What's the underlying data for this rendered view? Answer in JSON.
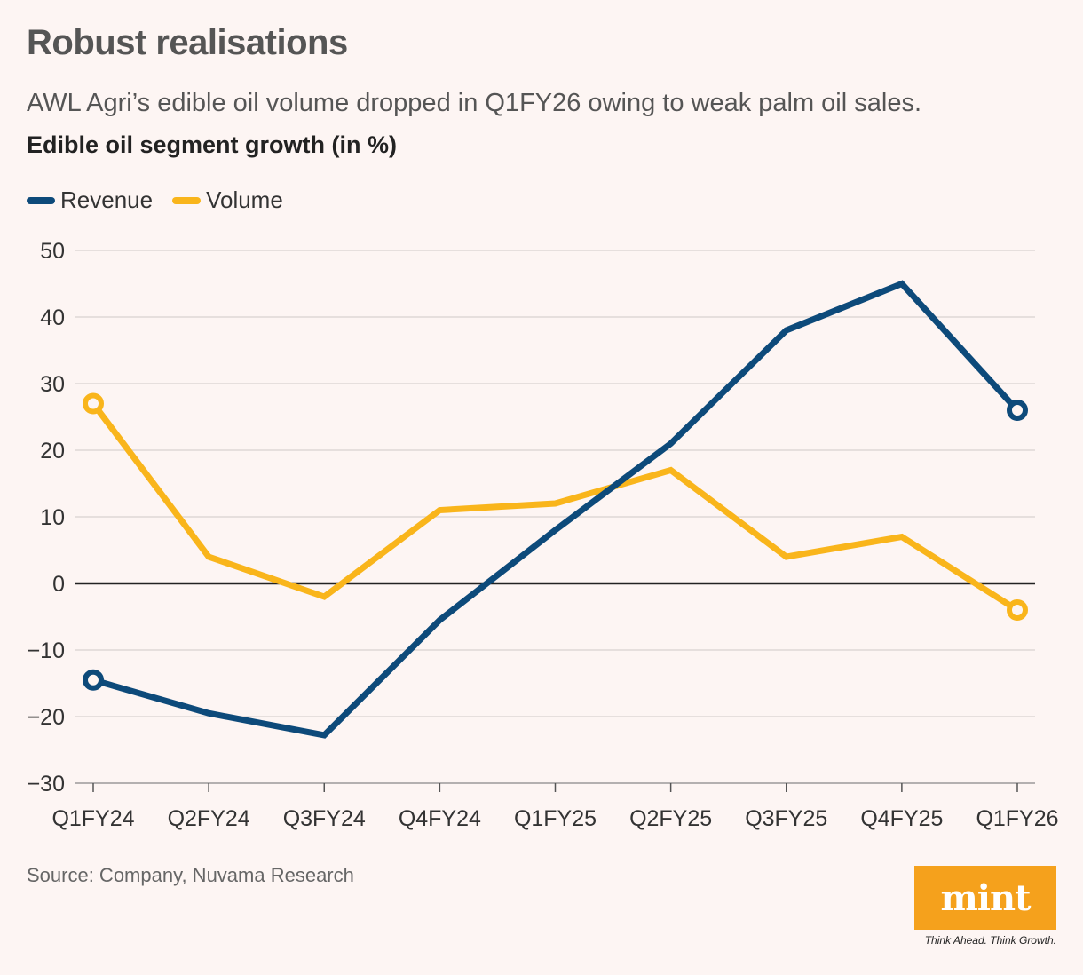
{
  "header": {
    "title": "Robust realisations",
    "subtitle": "AWL Agri’s edible oil volume dropped in Q1FY26 owing to weak palm oil sales.",
    "chart_label": "Edible oil segment growth (in %)"
  },
  "legend": {
    "revenue_label": "Revenue",
    "volume_label": "Volume"
  },
  "footer": {
    "source": "Source: Company, Nuvama Research",
    "logo_text": "mint",
    "tagline": "Think Ahead. Think Growth."
  },
  "colors": {
    "revenue": "#0d4a7a",
    "volume": "#f9b51b",
    "logo": "#f5a11c",
    "grid": "#d9d2d0",
    "zero_line": "#222222"
  },
  "chart_data": {
    "type": "line",
    "title": "Edible oil segment growth (in %)",
    "xlabel": "",
    "ylabel": "",
    "categories": [
      "Q1FY24",
      "Q2FY24",
      "Q3FY24",
      "Q4FY24",
      "Q1FY25",
      "Q2FY25",
      "Q3FY25",
      "Q4FY25",
      "Q1FY26"
    ],
    "ylim": [
      -30,
      50
    ],
    "yticks": [
      50,
      40,
      30,
      20,
      10,
      0,
      -10,
      -20,
      -30
    ],
    "ytick_labels": [
      "50",
      "40",
      "30",
      "20",
      "10",
      "0",
      "−10",
      "−20",
      "−30"
    ],
    "series": [
      {
        "name": "Revenue",
        "color": "#0d4a7a",
        "values": [
          -14.5,
          -19.5,
          -22.8,
          -5.5,
          8,
          21,
          38,
          45,
          26
        ]
      },
      {
        "name": "Volume",
        "color": "#f9b51b",
        "values": [
          27,
          4,
          -2,
          11,
          12,
          17,
          4,
          7,
          -4
        ]
      }
    ],
    "grid": true,
    "legend_position": "top-left"
  }
}
